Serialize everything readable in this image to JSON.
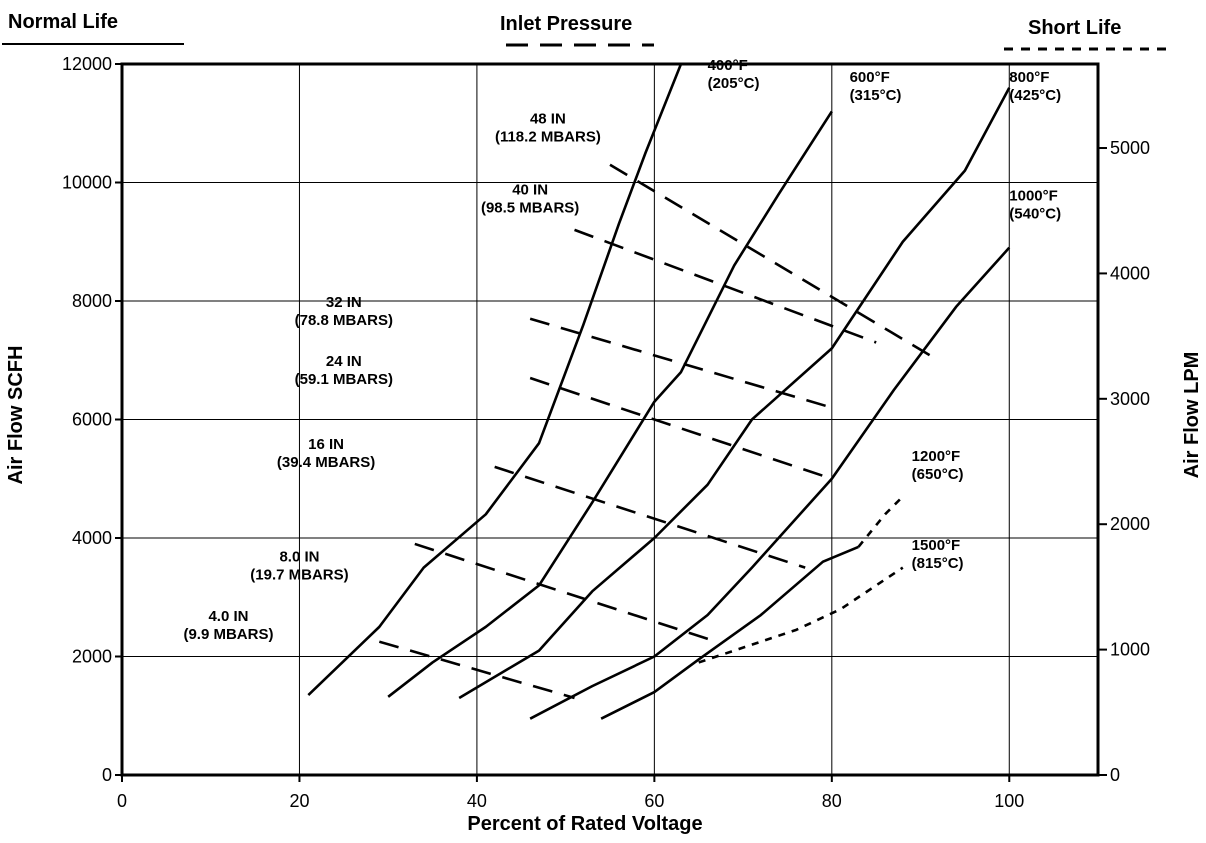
{
  "legend": {
    "normal_life": "Normal Life",
    "inlet_pressure": "Inlet Pressure",
    "short_life": "Short Life"
  },
  "chart_data": {
    "type": "line",
    "xlabel": "Percent of Rated Voltage",
    "ylabel": "Air Flow SCFH",
    "y2label": "Air Flow LPM",
    "xlim": [
      0,
      110
    ],
    "ylim": [
      0,
      12000
    ],
    "y2lim": [
      0,
      5670
    ],
    "x_ticks": [
      0,
      20,
      40,
      60,
      80,
      100
    ],
    "y_ticks": [
      0,
      2000,
      4000,
      6000,
      8000,
      10000,
      12000
    ],
    "y2_ticks": [
      0,
      1000,
      2000,
      3000,
      4000,
      5000
    ],
    "grid": true,
    "legend_position": "top",
    "temperature_curves": [
      {
        "name": "400°F",
        "sub": "(205°C)",
        "style": "normal-life",
        "points": [
          [
            21,
            1350
          ],
          [
            29,
            2500
          ],
          [
            34,
            3500
          ],
          [
            41,
            4400
          ],
          [
            47,
            5600
          ],
          [
            52,
            7600
          ],
          [
            56,
            9300
          ],
          [
            59,
            10500
          ],
          [
            63,
            12000
          ]
        ],
        "label_at": [
          66,
          11900
        ]
      },
      {
        "name": "600°F",
        "sub": "(315°C)",
        "style": "normal-life",
        "points": [
          [
            30,
            1320
          ],
          [
            35,
            1900
          ],
          [
            41,
            2500
          ],
          [
            47,
            3200
          ],
          [
            53,
            4600
          ],
          [
            60,
            6300
          ],
          [
            63,
            6800
          ],
          [
            69,
            8600
          ],
          [
            74,
            9800
          ],
          [
            80,
            11200
          ]
        ],
        "label_at": [
          82,
          11700
        ]
      },
      {
        "name": "800°F",
        "sub": "(425°C)",
        "style": "normal-life",
        "points": [
          [
            38,
            1300
          ],
          [
            47,
            2100
          ],
          [
            53,
            3100
          ],
          [
            60,
            4000
          ],
          [
            66,
            4900
          ],
          [
            71,
            6000
          ],
          [
            80,
            7200
          ],
          [
            88,
            9000
          ],
          [
            95,
            10200
          ],
          [
            100,
            11600
          ]
        ],
        "label_at": [
          100,
          11700
        ]
      },
      {
        "name": "1000°F",
        "sub": "(540°C)",
        "style": "normal-life",
        "points": [
          [
            46,
            950
          ],
          [
            53,
            1500
          ],
          [
            60,
            2000
          ],
          [
            66,
            2700
          ],
          [
            71,
            3500
          ],
          [
            80,
            5000
          ],
          [
            87,
            6500
          ],
          [
            94,
            7900
          ],
          [
            100,
            8900
          ]
        ],
        "label_at": [
          100,
          9700
        ]
      },
      {
        "name": "1200°F",
        "sub": "(650°C)",
        "style": "normal-life",
        "points": [
          [
            54,
            950
          ],
          [
            60,
            1400
          ],
          [
            65,
            1950
          ],
          [
            72,
            2700
          ],
          [
            79,
            3600
          ],
          [
            83,
            3850
          ]
        ],
        "label_at": [
          89,
          5300
        ]
      },
      {
        "name": "1200°F ext",
        "sub": "",
        "style": "short-life",
        "points": [
          [
            83,
            3850
          ],
          [
            86,
            4400
          ],
          [
            88,
            4700
          ]
        ]
      },
      {
        "name": "1500°F",
        "sub": "(815°C)",
        "style": "short-life",
        "points": [
          [
            65,
            1900
          ],
          [
            71,
            2200
          ],
          [
            76,
            2450
          ],
          [
            81,
            2800
          ],
          [
            85,
            3200
          ],
          [
            88,
            3500
          ]
        ],
        "label_at": [
          89,
          3800
        ]
      }
    ],
    "pressure_lines": [
      {
        "name": "4.0 IN",
        "sub": "(9.9 MBARS)",
        "points": [
          [
            29,
            2250
          ],
          [
            51,
            1300
          ]
        ],
        "label_at": [
          12,
          2600
        ]
      },
      {
        "name": "8.0  IN",
        "sub": "(19.7 MBARS)",
        "points": [
          [
            33,
            3900
          ],
          [
            67,
            2250
          ]
        ],
        "label_at": [
          20,
          3600
        ]
      },
      {
        "name": "16 IN",
        "sub": "(39.4 MBARS)",
        "points": [
          [
            42,
            5200
          ],
          [
            77,
            3500
          ]
        ],
        "label_at": [
          23,
          5500
        ]
      },
      {
        "name": "24 IN",
        "sub": "(59.1 MBARS)",
        "points": [
          [
            46,
            6700
          ],
          [
            80,
            5000
          ]
        ],
        "label_at": [
          25,
          6900
        ]
      },
      {
        "name": "32 IN",
        "sub": "(78.8 MBARS)",
        "points": [
          [
            46,
            7700
          ],
          [
            80,
            6200
          ]
        ],
        "label_at": [
          25,
          7900
        ]
      },
      {
        "name": "40 IN",
        "sub": "(98.5 MBARS)",
        "points": [
          [
            51,
            9200
          ],
          [
            85,
            7300
          ]
        ],
        "label_at": [
          46,
          9800
        ]
      },
      {
        "name": "48 IN",
        "sub": "(118.2 MBARS)",
        "points": [
          [
            55,
            10300
          ],
          [
            92,
            7000
          ]
        ],
        "label_at": [
          48,
          11000
        ]
      }
    ]
  }
}
